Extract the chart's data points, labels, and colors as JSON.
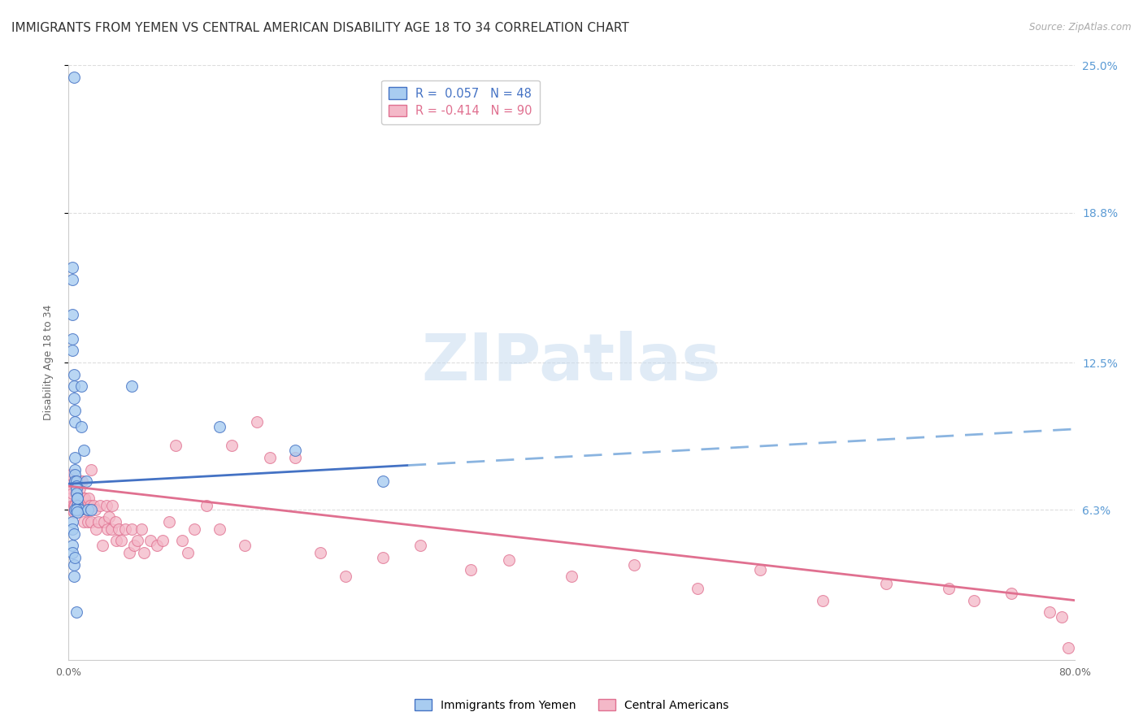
{
  "title": "IMMIGRANTS FROM YEMEN VS CENTRAL AMERICAN DISABILITY AGE 18 TO 34 CORRELATION CHART",
  "source": "Source: ZipAtlas.com",
  "ylabel": "Disability Age 18 to 34",
  "xlim": [
    0.0,
    0.8
  ],
  "ylim": [
    0.0,
    0.25
  ],
  "right_ytick_labels": [
    "25.0%",
    "18.8%",
    "12.5%",
    "6.3%"
  ],
  "right_ytick_values": [
    0.25,
    0.188,
    0.125,
    0.063
  ],
  "xtick_labels": [
    "0.0%",
    "",
    "",
    "",
    "",
    "",
    "",
    "",
    "80.0%"
  ],
  "xtick_values": [
    0.0,
    0.1,
    0.2,
    0.3,
    0.4,
    0.5,
    0.6,
    0.7,
    0.8
  ],
  "legend_line1": "R =  0.057   N = 48",
  "legend_line2": "R = -0.414   N = 90",
  "color_yemen_fill": "#A8CCF0",
  "color_yemen_edge": "#4472C4",
  "color_central_fill": "#F4B8C8",
  "color_central_edge": "#E07090",
  "color_line_yemen_solid": "#4472C4",
  "color_line_yemen_dashed": "#8AB4E0",
  "color_line_central": "#E07090",
  "watermark_text": "ZIPatlas",
  "background": "#FFFFFF",
  "grid_color": "#DDDDDD",
  "yemen_points_x": [
    0.004,
    0.003,
    0.003,
    0.003,
    0.003,
    0.003,
    0.004,
    0.004,
    0.004,
    0.005,
    0.005,
    0.005,
    0.005,
    0.005,
    0.005,
    0.006,
    0.006,
    0.006,
    0.006,
    0.007,
    0.007,
    0.007,
    0.007,
    0.008,
    0.008,
    0.009,
    0.01,
    0.01,
    0.012,
    0.014,
    0.015,
    0.018,
    0.05,
    0.12,
    0.18,
    0.25,
    0.003,
    0.003,
    0.004,
    0.004,
    0.005,
    0.006,
    0.007,
    0.003,
    0.003,
    0.004,
    0.005,
    0.006
  ],
  "yemen_points_y": [
    0.245,
    0.165,
    0.16,
    0.145,
    0.135,
    0.13,
    0.12,
    0.115,
    0.11,
    0.105,
    0.1,
    0.085,
    0.08,
    0.078,
    0.075,
    0.075,
    0.073,
    0.072,
    0.07,
    0.068,
    0.065,
    0.068,
    0.063,
    0.063,
    0.063,
    0.063,
    0.115,
    0.098,
    0.088,
    0.075,
    0.063,
    0.063,
    0.115,
    0.098,
    0.088,
    0.075,
    0.048,
    0.045,
    0.04,
    0.035,
    0.063,
    0.063,
    0.062,
    0.058,
    0.055,
    0.053,
    0.043,
    0.02
  ],
  "central_points_x": [
    0.001,
    0.002,
    0.002,
    0.002,
    0.003,
    0.003,
    0.003,
    0.004,
    0.004,
    0.005,
    0.005,
    0.006,
    0.006,
    0.007,
    0.007,
    0.008,
    0.008,
    0.009,
    0.009,
    0.01,
    0.01,
    0.011,
    0.011,
    0.012,
    0.012,
    0.013,
    0.013,
    0.014,
    0.015,
    0.015,
    0.016,
    0.017,
    0.018,
    0.018,
    0.02,
    0.021,
    0.022,
    0.024,
    0.025,
    0.027,
    0.028,
    0.03,
    0.031,
    0.032,
    0.034,
    0.035,
    0.037,
    0.038,
    0.04,
    0.042,
    0.045,
    0.048,
    0.05,
    0.052,
    0.055,
    0.058,
    0.06,
    0.065,
    0.07,
    0.075,
    0.08,
    0.085,
    0.09,
    0.095,
    0.1,
    0.11,
    0.12,
    0.13,
    0.14,
    0.15,
    0.16,
    0.18,
    0.2,
    0.22,
    0.25,
    0.28,
    0.32,
    0.35,
    0.4,
    0.45,
    0.5,
    0.55,
    0.6,
    0.65,
    0.7,
    0.72,
    0.75,
    0.78,
    0.79,
    0.795
  ],
  "central_points_y": [
    0.072,
    0.075,
    0.078,
    0.068,
    0.065,
    0.063,
    0.07,
    0.062,
    0.065,
    0.075,
    0.065,
    0.075,
    0.07,
    0.068,
    0.065,
    0.075,
    0.068,
    0.072,
    0.065,
    0.075,
    0.065,
    0.075,
    0.068,
    0.068,
    0.058,
    0.065,
    0.068,
    0.063,
    0.065,
    0.058,
    0.068,
    0.065,
    0.058,
    0.08,
    0.065,
    0.063,
    0.055,
    0.058,
    0.065,
    0.048,
    0.058,
    0.065,
    0.055,
    0.06,
    0.055,
    0.065,
    0.058,
    0.05,
    0.055,
    0.05,
    0.055,
    0.045,
    0.055,
    0.048,
    0.05,
    0.055,
    0.045,
    0.05,
    0.048,
    0.05,
    0.058,
    0.09,
    0.05,
    0.045,
    0.055,
    0.065,
    0.055,
    0.09,
    0.048,
    0.1,
    0.085,
    0.085,
    0.045,
    0.035,
    0.043,
    0.048,
    0.038,
    0.042,
    0.035,
    0.04,
    0.03,
    0.038,
    0.025,
    0.032,
    0.03,
    0.025,
    0.028,
    0.02,
    0.018,
    0.005
  ],
  "yemen_trendline_x0": 0.0,
  "yemen_trendline_x1": 0.8,
  "yemen_trendline_y0": 0.074,
  "yemen_trendline_y1": 0.097,
  "central_trendline_x0": 0.0,
  "central_trendline_x1": 0.8,
  "central_trendline_y0": 0.073,
  "central_trendline_y1": 0.025,
  "title_fontsize": 11,
  "tick_fontsize": 9,
  "axis_label_fontsize": 9
}
